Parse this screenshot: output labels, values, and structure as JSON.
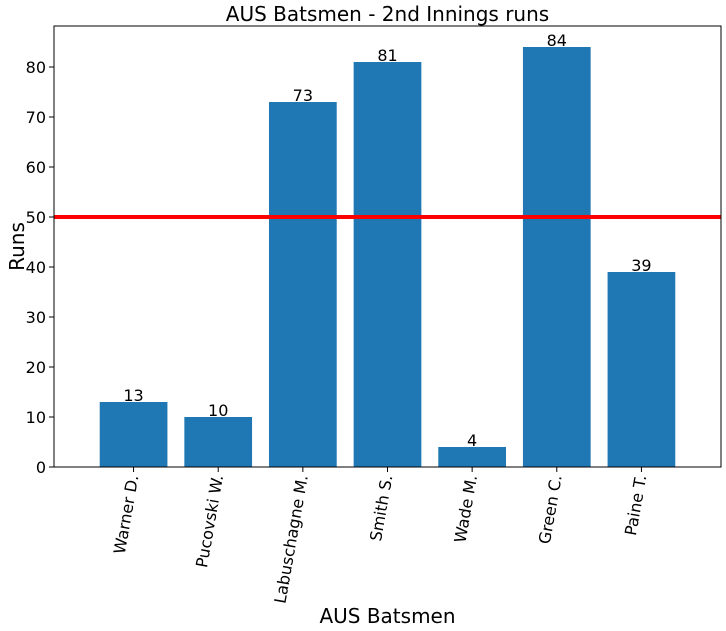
{
  "chart_data": {
    "type": "bar",
    "title": "AUS Batsmen - 2nd Innings runs",
    "xlabel": "AUS Batsmen",
    "ylabel": "Runs",
    "categories": [
      "Warner D.",
      "Pucovski W.",
      "Labuschagne M.",
      "Smith S.",
      "Wade M.",
      "Green C.",
      "Paine T."
    ],
    "values": [
      13,
      10,
      73,
      81,
      4,
      84,
      39
    ],
    "ylim": [
      0,
      88.2
    ],
    "yticks": [
      0,
      10,
      20,
      30,
      40,
      50,
      60,
      70,
      80
    ],
    "reference_line": {
      "y": 50,
      "color": "#ff0000"
    },
    "bar_color": "#1f77b4",
    "grid": false,
    "x_tick_rotation": "rotated ~80 degrees"
  }
}
